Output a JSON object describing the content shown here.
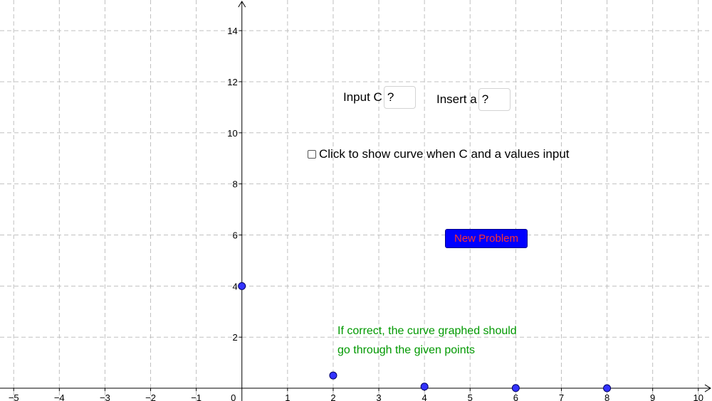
{
  "colors": {
    "point": "#3333ff",
    "button_bg": "#0000ff",
    "button_text": "#ff3030",
    "hint_text": "#009900",
    "grid": "#c0c0c0"
  },
  "graph": {
    "x_range": [
      -5.3,
      10.3
    ],
    "y_range": [
      -0.5,
      15.2
    ],
    "grid": true,
    "x_ticks": [
      "−5",
      "−4",
      "−3",
      "−2",
      "−1",
      "0",
      "1",
      "2",
      "3",
      "4",
      "5",
      "6",
      "7",
      "8",
      "9",
      "10"
    ],
    "y_ticks": [
      "2",
      "4",
      "6",
      "8",
      "10",
      "12",
      "14"
    ],
    "points": [
      {
        "x": 0,
        "y": 4
      },
      {
        "x": 2,
        "y": 0.5
      },
      {
        "x": 4,
        "y": 0.0625
      },
      {
        "x": 6,
        "y": 0.0078
      },
      {
        "x": 8,
        "y": 0.001
      }
    ]
  },
  "input_c": {
    "label": "Input C",
    "value": "?"
  },
  "input_a": {
    "label": "Insert a",
    "value": "?"
  },
  "show_curve": {
    "label": "Click to show curve when C and a values input",
    "checked": false
  },
  "new_problem": {
    "label": "New Problem"
  },
  "hint": {
    "line1": "If correct, the curve graphed should",
    "line2": "go through the given points"
  }
}
